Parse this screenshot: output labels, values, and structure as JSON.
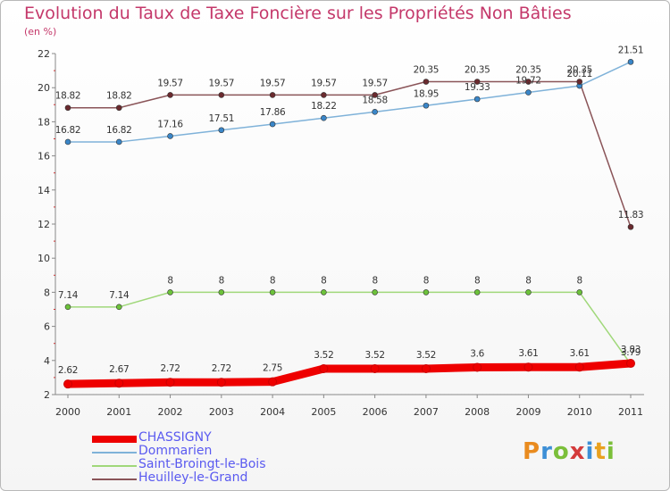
{
  "title": "Evolution du Taux de Taxe Foncière sur les Propriétés Non Bâties",
  "subtitle": "(en %)",
  "logo": "Proxiti",
  "chart_data": {
    "type": "line",
    "title": "Evolution du Taux de Taxe Foncière sur les Propriétés Non Bâties",
    "ylabel": "(en %)",
    "xlabel": "",
    "x": [
      "2000",
      "2001",
      "2002",
      "2003",
      "2004",
      "2005",
      "2006",
      "2007",
      "2008",
      "2009",
      "2010",
      "2011"
    ],
    "ylim": [
      2,
      22
    ],
    "yticks": [
      "2",
      "4",
      "6",
      "8",
      "10",
      "12",
      "14",
      "16",
      "18",
      "20",
      "22"
    ],
    "grid": false,
    "legend": "bottom-left",
    "series": [
      {
        "name": "CHASSIGNY",
        "color": "#ee0000",
        "values": [
          2.62,
          2.67,
          2.72,
          2.72,
          2.75,
          3.52,
          3.52,
          3.52,
          3.6,
          3.61,
          3.61,
          3.83
        ],
        "labels": [
          "2.62",
          "2.67",
          "2.72",
          "2.72",
          "2.75",
          "3.52",
          "3.52",
          "3.52",
          "3.6",
          "3.61",
          "3.61",
          "3.83"
        ]
      },
      {
        "name": "Dommarien",
        "color": "#7fb2d9",
        "values": [
          16.82,
          16.82,
          17.16,
          17.51,
          17.86,
          18.22,
          18.58,
          18.95,
          19.33,
          19.72,
          20.11,
          21.51
        ],
        "labels": [
          "16.82",
          "16.82",
          "17.16",
          "17.51",
          "17.86",
          "18.22",
          "18.58",
          "18.95",
          "19.33",
          "19.72",
          "20.11",
          "21.51"
        ]
      },
      {
        "name": "Saint-Broingt-le-Bois",
        "color": "#a0d87a",
        "values": [
          7.14,
          7.14,
          8,
          8,
          8,
          8,
          8,
          8,
          8,
          8,
          8,
          3.79
        ],
        "labels": [
          "7.14",
          "7.14",
          "8",
          "8",
          "8",
          "8",
          "8",
          "8",
          "8",
          "8",
          "8",
          "3.79"
        ]
      },
      {
        "name": "Heuilley-le-Grand",
        "color": "#8a5458",
        "values": [
          18.82,
          18.82,
          19.57,
          19.57,
          19.57,
          19.57,
          19.57,
          20.35,
          20.35,
          20.35,
          20.35,
          11.83
        ],
        "labels": [
          "18.82",
          "18.82",
          "19.57",
          "19.57",
          "19.57",
          "19.57",
          "19.57",
          "20.35",
          "20.35",
          "20.35",
          "20.35",
          "11.83"
        ]
      }
    ]
  }
}
